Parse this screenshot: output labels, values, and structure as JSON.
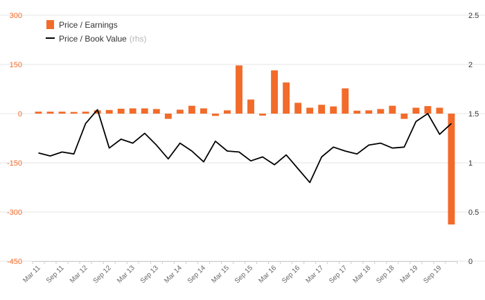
{
  "chart_data": {
    "type": "bar+line",
    "title": "",
    "xlabel": "",
    "ylabel": "",
    "ylim_left": [
      -450,
      300
    ],
    "ylim_right": [
      0,
      2.5
    ],
    "yticks_left": [
      "300",
      "150",
      "0",
      "-150",
      "-300",
      "-450"
    ],
    "yticks_right": [
      "2.5",
      "2",
      "1.5",
      "1",
      "0.5",
      "0"
    ],
    "xtick_labels": [
      "Mar 11",
      "Sep 11",
      "Mar 12",
      "Sep 12",
      "Mar 13",
      "Sep 13",
      "Mar 14",
      "Sep 14",
      "Mar 15",
      "Sep 15",
      "Mar 16",
      "Sep 16",
      "Mar 17",
      "Sep 17",
      "Mar 18",
      "Sep 18",
      "Mar 19",
      "Sep 19"
    ],
    "grid": "horizontal",
    "legend_position": "top-left",
    "legend": {
      "bar_label": "Price / Earnings",
      "line_label": "Price / Book Value",
      "line_suffix": "(rhs)"
    },
    "colors": {
      "bar": "#f26b2a",
      "line": "#000000",
      "left_axis_text": "#f26b2a",
      "grid": "#e6e6e6"
    },
    "series": [
      {
        "name": "Price / Earnings",
        "axis": "left",
        "type": "bar",
        "values": [
          6,
          6,
          6,
          5,
          6,
          10,
          11,
          15,
          16,
          16,
          14,
          -16,
          12,
          24,
          16,
          -7,
          10,
          147,
          43,
          -6,
          132,
          95,
          33,
          18,
          27,
          22,
          77,
          9,
          10,
          14,
          24,
          -16,
          18,
          23,
          18,
          -338
        ]
      },
      {
        "name": "Price / Book Value",
        "axis": "right",
        "type": "line",
        "values": [
          1.1,
          1.07,
          1.11,
          1.09,
          1.4,
          1.54,
          1.15,
          1.24,
          1.2,
          1.3,
          1.18,
          1.04,
          1.2,
          1.12,
          1.01,
          1.22,
          1.12,
          1.11,
          1.02,
          1.06,
          0.98,
          1.08,
          0.94,
          0.8,
          1.06,
          1.16,
          1.12,
          1.09,
          1.18,
          1.2,
          1.15,
          1.16,
          1.42,
          1.5,
          1.29,
          1.4
        ]
      }
    ]
  }
}
